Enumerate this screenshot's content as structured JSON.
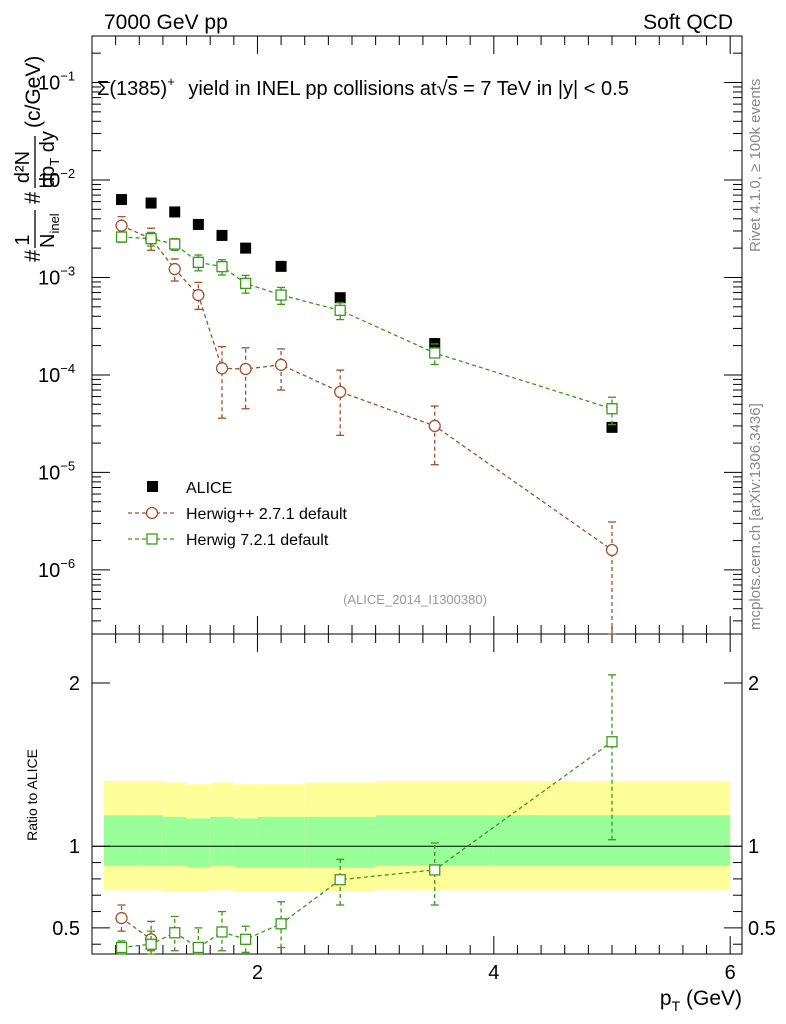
{
  "header": {
    "left": "7000 GeV pp",
    "right": "Soft QCD"
  },
  "side_labels": {
    "rivet": "Rivet 4.1.0, ≥ 100k events",
    "mcplots": "mcplots.cern.ch [arXiv:1306.3436]"
  },
  "colors": {
    "alice": "#000000",
    "herwig27": "#a0522d",
    "herwig72": "#3a9a1a",
    "band_outer": "#ffff99",
    "band_inner": "#99ff99"
  },
  "chart_data": [
    {
      "type": "scatter",
      "panel": "main",
      "title": "Σ(1385)⁺  yield in INEL pp collisions at √s = 7 TeV in |y| < 0.5",
      "title_parts": {
        "particle": "Σ(1385)",
        "charge": "+",
        "text_pre": " yield in INEL pp collisions at",
        "sqrt": "√",
        "s": "s",
        "text_post": " = 7 TeV in |y| < 0.5"
      },
      "ylabel": "# 1/N_inel # d²N/dp_T dy (c/GeV)",
      "ylabel_parts": {
        "hash": "#",
        "one": "1",
        "n": "N",
        "inel": "inel",
        "d2n": "d²N",
        "dpt": "dp",
        "t": "T",
        "dy": " dy",
        "unit": "(c/GeV)"
      },
      "xlim": [
        0.6,
        6.1
      ],
      "ylim_log": [
        2.2e-07,
        0.3
      ],
      "yticks": [
        {
          "value": 1e-06,
          "base": "10",
          "exp": "−6"
        },
        {
          "value": 1e-05,
          "base": "10",
          "exp": "−5"
        },
        {
          "value": 0.0001,
          "base": "10",
          "exp": "−4"
        },
        {
          "value": 0.001,
          "base": "10",
          "exp": "−3"
        },
        {
          "value": 0.01,
          "base": "10",
          "exp": "−2"
        },
        {
          "value": 0.1,
          "base": "10",
          "exp": "−1"
        }
      ],
      "watermark": "(ALICE_2014_I1300380)",
      "legend": [
        "ALICE",
        "Herwig++ 2.7.1 default",
        "Herwig 7.2.1 default"
      ],
      "x": [
        0.85,
        1.1,
        1.3,
        1.5,
        1.7,
        1.9,
        2.2,
        2.7,
        3.5,
        5.0
      ],
      "series": [
        {
          "name": "ALICE",
          "marker": "filled-square",
          "values": [
            0.0063,
            0.0058,
            0.0047,
            0.0035,
            0.0027,
            0.002,
            0.0013,
            0.00062,
            0.00021,
            2.9e-05
          ]
        },
        {
          "name": "Herwig++ 2.7.1 default",
          "marker": "open-circle",
          "values": [
            0.0034,
            0.0025,
            0.00122,
            0.00066,
            0.000117,
            0.000115,
            0.000127,
            6.7e-05,
            3e-05,
            1.6e-06
          ],
          "err_low": [
            0.0026,
            0.0019,
            0.00092,
            0.00047,
            3.6e-05,
            4.5e-05,
            7e-05,
            2.4e-05,
            1.2e-05,
            2e-07
          ],
          "err_high": [
            0.0042,
            0.0032,
            0.00155,
            0.00089,
            0.000195,
            0.00019,
            0.000185,
            0.000112,
            4.8e-05,
            3.1e-06
          ]
        },
        {
          "name": "Herwig 7.2.1 default",
          "marker": "open-square",
          "values": [
            0.0026,
            0.0025,
            0.0022,
            0.00143,
            0.00129,
            0.00087,
            0.00066,
            0.00046,
            0.000168,
            4.5e-05
          ],
          "err_low": [
            0.0023,
            0.0021,
            0.0019,
            0.00117,
            0.00106,
            0.00069,
            0.00053,
            0.00037,
            0.000128,
            3.1e-05
          ],
          "err_high": [
            0.0029,
            0.0029,
            0.0025,
            0.0017,
            0.00152,
            0.00105,
            0.00079,
            0.00055,
            0.000208,
            5.9e-05
          ]
        }
      ]
    },
    {
      "type": "scatter",
      "panel": "ratio",
      "ylabel": "Ratio to ALICE",
      "xlabel": "p_T (GeV)",
      "xlabel_parts": {
        "p": "p",
        "t": "T",
        "unit": " (GeV)"
      },
      "xlim": [
        0.6,
        6.1
      ],
      "ylim": [
        0.34,
        2.3
      ],
      "xticks": [
        "2",
        "4",
        "6"
      ],
      "yticks": [
        "0.5",
        "1",
        "2"
      ],
      "reference": 1.0,
      "band": {
        "x_edges": [
          0.7,
          1.0,
          1.2,
          1.4,
          1.6,
          1.8,
          2.0,
          2.4,
          3.0,
          4.0,
          6.0
        ],
        "outer_low": [
          0.73,
          0.73,
          0.72,
          0.72,
          0.73,
          0.72,
          0.72,
          0.72,
          0.73,
          0.73
        ],
        "outer_high": [
          1.4,
          1.4,
          1.39,
          1.38,
          1.39,
          1.38,
          1.38,
          1.39,
          1.4,
          1.4
        ],
        "inner_low": [
          0.88,
          0.88,
          0.88,
          0.87,
          0.88,
          0.87,
          0.87,
          0.87,
          0.88,
          0.88
        ],
        "inner_high": [
          1.19,
          1.19,
          1.18,
          1.17,
          1.18,
          1.17,
          1.18,
          1.18,
          1.19,
          1.19
        ]
      },
      "x": [
        0.85,
        1.1,
        1.3,
        1.5,
        1.7,
        1.9,
        2.2,
        2.7,
        3.5,
        5.0
      ],
      "series": [
        {
          "name": "Herwig++ 2.7.1 default",
          "values": [
            0.56,
            0.43,
            null,
            null,
            null,
            null,
            null,
            null,
            null,
            null
          ],
          "err_low": [
            0.48,
            0.36,
            null,
            null,
            null,
            null,
            null,
            null,
            null,
            null
          ],
          "err_high": [
            0.64,
            0.54,
            null,
            null,
            null,
            null,
            null,
            null,
            null,
            null
          ]
        },
        {
          "name": "Herwig 7.2.1 default",
          "values": [
            0.38,
            0.4,
            0.47,
            0.38,
            0.475,
            0.43,
            0.525,
            0.795,
            0.855,
            1.64
          ],
          "err_low": [
            0.34,
            0.34,
            0.36,
            0.34,
            0.36,
            0.35,
            0.38,
            0.64,
            0.64,
            1.04
          ],
          "err_high": [
            0.42,
            0.48,
            0.57,
            0.5,
            0.6,
            0.51,
            0.66,
            0.92,
            1.02,
            2.05
          ]
        }
      ]
    }
  ]
}
